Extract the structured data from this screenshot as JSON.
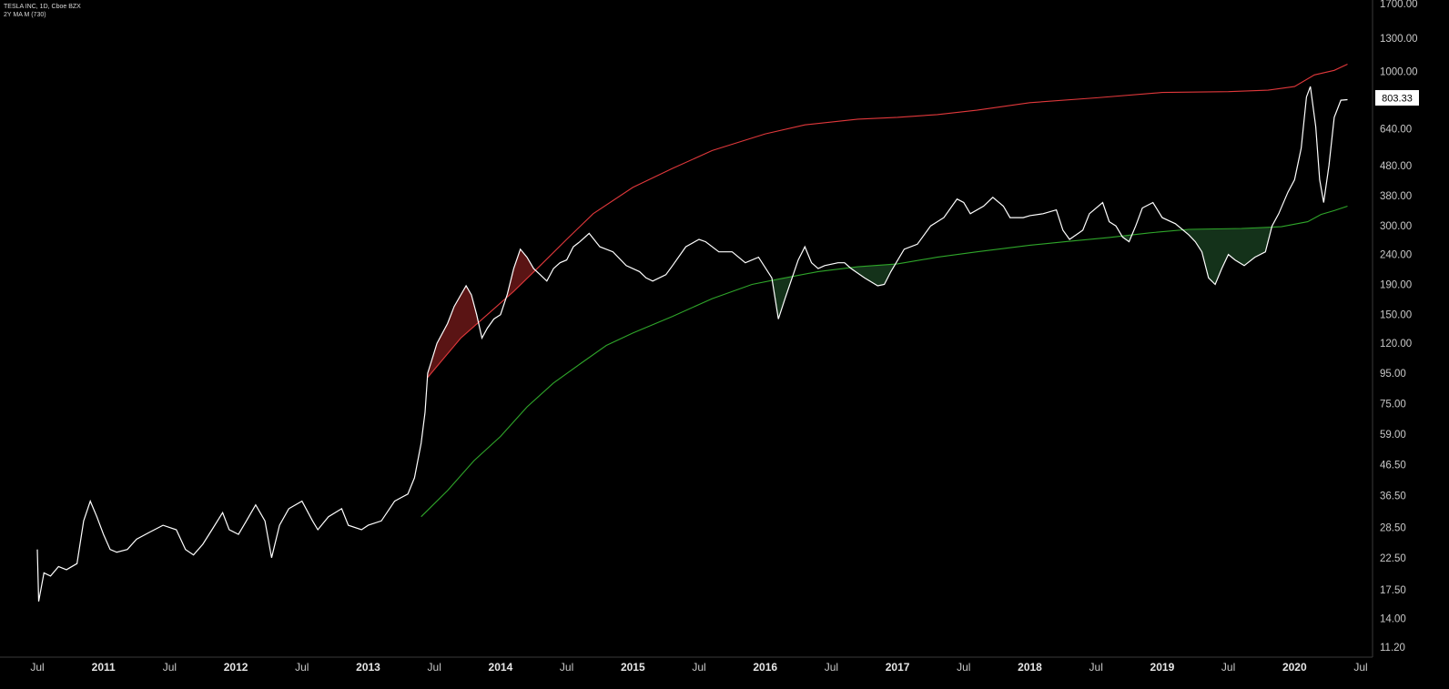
{
  "header": {
    "symbol_line": "TESLA INC, 1D, Cboe BZX",
    "indicator_line": "2Y MA M (730)"
  },
  "price_label": "803.33",
  "colors": {
    "background": "#000000",
    "price": "#ffffff",
    "upper_band": "#e0383b",
    "lower_band": "#2fa62a",
    "upper_fill": "#5a1414",
    "lower_fill": "#14321a",
    "axis_text": "#c8c8c8"
  },
  "chart_data": {
    "type": "line",
    "title": "TESLA INC, 1D, Cboe BZX",
    "subtitle": "2Y MA M (730)",
    "y_scale": "log",
    "ylim": [
      10.5,
      1750
    ],
    "xlim": [
      2010.42,
      2020.57
    ],
    "y_ticks": [
      "1700.00",
      "1300.00",
      "1000.00",
      "803.33",
      "640.00",
      "480.00",
      "380.00",
      "300.00",
      "240.00",
      "190.00",
      "150.00",
      "120.00",
      "95.00",
      "75.00",
      "59.00",
      "46.50",
      "36.50",
      "28.50",
      "22.50",
      "17.50",
      "14.00",
      "11.20"
    ],
    "x_ticks": [
      {
        "label": "Jul",
        "x": 2010.5,
        "bold": false
      },
      {
        "label": "2011",
        "x": 2011.0,
        "bold": true
      },
      {
        "label": "Jul",
        "x": 2011.5,
        "bold": false
      },
      {
        "label": "2012",
        "x": 2012.0,
        "bold": true
      },
      {
        "label": "Jul",
        "x": 2012.5,
        "bold": false
      },
      {
        "label": "2013",
        "x": 2013.0,
        "bold": true
      },
      {
        "label": "Jul",
        "x": 2013.5,
        "bold": false
      },
      {
        "label": "2014",
        "x": 2014.0,
        "bold": true
      },
      {
        "label": "Jul",
        "x": 2014.5,
        "bold": false
      },
      {
        "label": "2015",
        "x": 2015.0,
        "bold": true
      },
      {
        "label": "Jul",
        "x": 2015.5,
        "bold": false
      },
      {
        "label": "2016",
        "x": 2016.0,
        "bold": true
      },
      {
        "label": "Jul",
        "x": 2016.5,
        "bold": false
      },
      {
        "label": "2017",
        "x": 2017.0,
        "bold": true
      },
      {
        "label": "Jul",
        "x": 2017.5,
        "bold": false
      },
      {
        "label": "2018",
        "x": 2018.0,
        "bold": true
      },
      {
        "label": "Jul",
        "x": 2018.5,
        "bold": false
      },
      {
        "label": "2019",
        "x": 2019.0,
        "bold": true
      },
      {
        "label": "Jul",
        "x": 2019.5,
        "bold": false
      },
      {
        "label": "2020",
        "x": 2020.0,
        "bold": true
      },
      {
        "label": "Jul",
        "x": 2020.5,
        "bold": false
      }
    ],
    "series": [
      {
        "role": "price",
        "points": [
          [
            2010.5,
            24.0
          ],
          [
            2010.51,
            16.0
          ],
          [
            2010.55,
            20.0
          ],
          [
            2010.6,
            19.5
          ],
          [
            2010.66,
            21.0
          ],
          [
            2010.72,
            20.5
          ],
          [
            2010.8,
            21.5
          ],
          [
            2010.85,
            30.0
          ],
          [
            2010.9,
            35.0
          ],
          [
            2010.95,
            31.0
          ],
          [
            2011.0,
            27.0
          ],
          [
            2011.05,
            24.0
          ],
          [
            2011.1,
            23.5
          ],
          [
            2011.18,
            24.0
          ],
          [
            2011.25,
            26.0
          ],
          [
            2011.35,
            27.5
          ],
          [
            2011.45,
            29.0
          ],
          [
            2011.55,
            28.0
          ],
          [
            2011.62,
            24.0
          ],
          [
            2011.68,
            23.0
          ],
          [
            2011.75,
            25.0
          ],
          [
            2011.82,
            28.0
          ],
          [
            2011.9,
            32.0
          ],
          [
            2011.95,
            28.0
          ],
          [
            2012.02,
            27.0
          ],
          [
            2012.08,
            30.0
          ],
          [
            2012.15,
            34.0
          ],
          [
            2012.22,
            30.0
          ],
          [
            2012.27,
            22.5
          ],
          [
            2012.33,
            29.0
          ],
          [
            2012.4,
            33.0
          ],
          [
            2012.5,
            35.0
          ],
          [
            2012.58,
            30.0
          ],
          [
            2012.62,
            28.0
          ],
          [
            2012.7,
            31.0
          ],
          [
            2012.8,
            33.0
          ],
          [
            2012.85,
            29.0
          ],
          [
            2012.95,
            28.0
          ],
          [
            2013.0,
            29.0
          ],
          [
            2013.1,
            30.0
          ],
          [
            2013.2,
            35.0
          ],
          [
            2013.25,
            36.0
          ],
          [
            2013.3,
            37.0
          ],
          [
            2013.35,
            42.0
          ],
          [
            2013.4,
            55.0
          ],
          [
            2013.43,
            70.0
          ],
          [
            2013.45,
            95.0
          ],
          [
            2013.48,
            105.0
          ],
          [
            2013.52,
            120.0
          ],
          [
            2013.6,
            140.0
          ],
          [
            2013.65,
            160.0
          ],
          [
            2013.7,
            175.0
          ],
          [
            2013.74,
            188.0
          ],
          [
            2013.78,
            175.0
          ],
          [
            2013.82,
            150.0
          ],
          [
            2013.86,
            125.0
          ],
          [
            2013.9,
            135.0
          ],
          [
            2013.95,
            145.0
          ],
          [
            2014.0,
            150.0
          ],
          [
            2014.05,
            175.0
          ],
          [
            2014.1,
            215.0
          ],
          [
            2014.15,
            250.0
          ],
          [
            2014.2,
            235.0
          ],
          [
            2014.25,
            215.0
          ],
          [
            2014.3,
            205.0
          ],
          [
            2014.35,
            195.0
          ],
          [
            2014.4,
            215.0
          ],
          [
            2014.45,
            225.0
          ],
          [
            2014.5,
            230.0
          ],
          [
            2014.55,
            255.0
          ],
          [
            2014.6,
            265.0
          ],
          [
            2014.67,
            283.0
          ],
          [
            2014.75,
            255.0
          ],
          [
            2014.85,
            245.0
          ],
          [
            2014.95,
            220.0
          ],
          [
            2015.05,
            210.0
          ],
          [
            2015.1,
            200.0
          ],
          [
            2015.15,
            195.0
          ],
          [
            2015.25,
            205.0
          ],
          [
            2015.3,
            220.0
          ],
          [
            2015.4,
            255.0
          ],
          [
            2015.5,
            270.0
          ],
          [
            2015.55,
            265.0
          ],
          [
            2015.65,
            245.0
          ],
          [
            2015.75,
            245.0
          ],
          [
            2015.85,
            225.0
          ],
          [
            2015.95,
            235.0
          ],
          [
            2016.05,
            200.0
          ],
          [
            2016.1,
            145.0
          ],
          [
            2016.15,
            170.0
          ],
          [
            2016.25,
            230.0
          ],
          [
            2016.3,
            255.0
          ],
          [
            2016.35,
            225.0
          ],
          [
            2016.4,
            215.0
          ],
          [
            2016.45,
            220.0
          ],
          [
            2016.55,
            225.0
          ],
          [
            2016.6,
            225.0
          ],
          [
            2016.65,
            215.0
          ],
          [
            2016.75,
            200.0
          ],
          [
            2016.85,
            188.0
          ],
          [
            2016.9,
            190.0
          ],
          [
            2016.95,
            210.0
          ],
          [
            2017.05,
            250.0
          ],
          [
            2017.15,
            260.0
          ],
          [
            2017.25,
            300.0
          ],
          [
            2017.35,
            320.0
          ],
          [
            2017.45,
            370.0
          ],
          [
            2017.5,
            360.0
          ],
          [
            2017.55,
            330.0
          ],
          [
            2017.65,
            350.0
          ],
          [
            2017.72,
            375.0
          ],
          [
            2017.8,
            350.0
          ],
          [
            2017.85,
            320.0
          ],
          [
            2017.95,
            320.0
          ],
          [
            2018.0,
            325.0
          ],
          [
            2018.1,
            330.0
          ],
          [
            2018.2,
            340.0
          ],
          [
            2018.25,
            290.0
          ],
          [
            2018.3,
            270.0
          ],
          [
            2018.4,
            290.0
          ],
          [
            2018.45,
            330.0
          ],
          [
            2018.55,
            360.0
          ],
          [
            2018.6,
            310.0
          ],
          [
            2018.65,
            300.0
          ],
          [
            2018.7,
            275.0
          ],
          [
            2018.75,
            265.0
          ],
          [
            2018.8,
            300.0
          ],
          [
            2018.85,
            345.0
          ],
          [
            2018.93,
            360.0
          ],
          [
            2019.0,
            320.0
          ],
          [
            2019.1,
            305.0
          ],
          [
            2019.2,
            280.0
          ],
          [
            2019.25,
            265.0
          ],
          [
            2019.3,
            245.0
          ],
          [
            2019.35,
            200.0
          ],
          [
            2019.4,
            190.0
          ],
          [
            2019.45,
            215.0
          ],
          [
            2019.5,
            240.0
          ],
          [
            2019.55,
            230.0
          ],
          [
            2019.62,
            220.0
          ],
          [
            2019.7,
            235.0
          ],
          [
            2019.78,
            245.0
          ],
          [
            2019.83,
            300.0
          ],
          [
            2019.88,
            330.0
          ],
          [
            2019.95,
            390.0
          ],
          [
            2020.0,
            430.0
          ],
          [
            2020.05,
            550.0
          ],
          [
            2020.09,
            820.0
          ],
          [
            2020.12,
            890.0
          ],
          [
            2020.16,
            650.0
          ],
          [
            2020.19,
            430.0
          ],
          [
            2020.22,
            360.0
          ],
          [
            2020.26,
            480.0
          ],
          [
            2020.3,
            700.0
          ],
          [
            2020.35,
            800.0
          ],
          [
            2020.4,
            803.33
          ]
        ]
      },
      {
        "role": "upper_band",
        "points": [
          [
            2013.45,
            92
          ],
          [
            2013.7,
            125
          ],
          [
            2013.9,
            150
          ],
          [
            2014.1,
            180
          ],
          [
            2014.3,
            220
          ],
          [
            2014.5,
            270
          ],
          [
            2014.7,
            330
          ],
          [
            2015.0,
            405
          ],
          [
            2015.3,
            470
          ],
          [
            2015.6,
            540
          ],
          [
            2016.0,
            615
          ],
          [
            2016.3,
            660
          ],
          [
            2016.7,
            690
          ],
          [
            2017.0,
            700
          ],
          [
            2017.3,
            715
          ],
          [
            2017.6,
            740
          ],
          [
            2018.0,
            785
          ],
          [
            2018.5,
            815
          ],
          [
            2019.0,
            850
          ],
          [
            2019.5,
            855
          ],
          [
            2019.8,
            865
          ],
          [
            2020.0,
            890
          ],
          [
            2020.15,
            975
          ],
          [
            2020.3,
            1010
          ],
          [
            2020.4,
            1060
          ]
        ]
      },
      {
        "role": "lower_band",
        "points": [
          [
            2013.4,
            31
          ],
          [
            2013.6,
            38
          ],
          [
            2013.8,
            48
          ],
          [
            2014.0,
            58
          ],
          [
            2014.2,
            73
          ],
          [
            2014.4,
            88
          ],
          [
            2014.6,
            102
          ],
          [
            2014.8,
            118
          ],
          [
            2015.0,
            130
          ],
          [
            2015.3,
            148
          ],
          [
            2015.6,
            170
          ],
          [
            2015.9,
            190
          ],
          [
            2016.1,
            198
          ],
          [
            2016.4,
            210
          ],
          [
            2016.7,
            218
          ],
          [
            2017.0,
            223
          ],
          [
            2017.3,
            235
          ],
          [
            2017.6,
            245
          ],
          [
            2018.0,
            258
          ],
          [
            2018.3,
            266
          ],
          [
            2018.6,
            274
          ],
          [
            2018.9,
            284
          ],
          [
            2019.2,
            292
          ],
          [
            2019.6,
            294
          ],
          [
            2019.9,
            298
          ],
          [
            2020.1,
            310
          ],
          [
            2020.2,
            328
          ],
          [
            2020.3,
            338
          ],
          [
            2020.4,
            350
          ]
        ]
      }
    ]
  }
}
